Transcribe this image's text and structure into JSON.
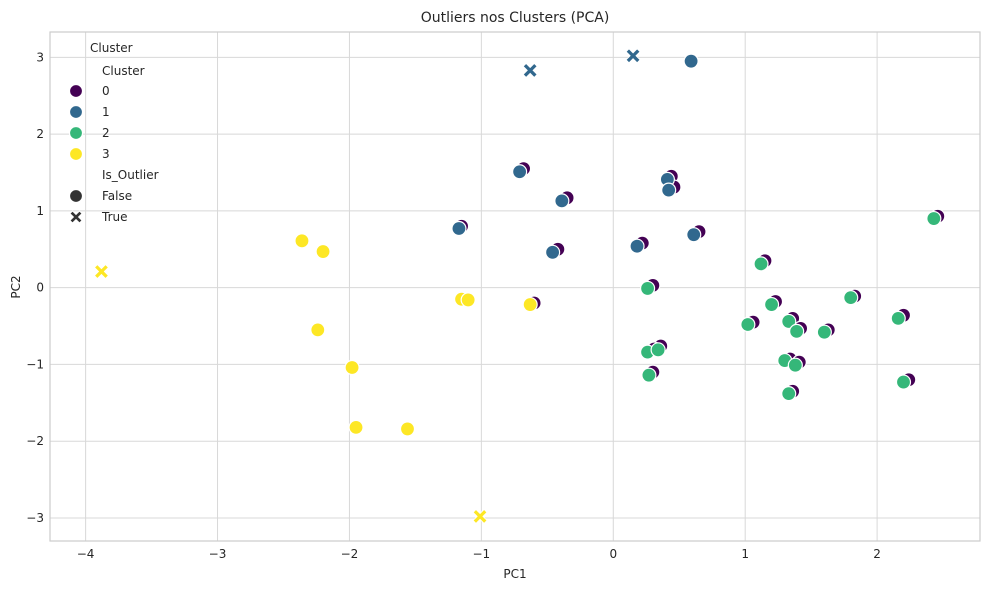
{
  "chart_data": {
    "type": "scatter",
    "title": "Outliers nos Clusters (PCA)",
    "xlabel": "PC1",
    "ylabel": "PC2",
    "xlim": [
      -4.27,
      2.78
    ],
    "ylim": [
      -3.3,
      3.33
    ],
    "xticks": [
      -4,
      -3,
      -2,
      -1,
      0,
      1,
      2
    ],
    "yticks": [
      -3,
      -2,
      -1,
      0,
      1,
      2,
      3
    ],
    "tick_labels_x": [
      "−4",
      "−3",
      "−2",
      "−1",
      "0",
      "1",
      "2"
    ],
    "tick_labels_y": [
      "−3",
      "−2",
      "−1",
      "0",
      "1",
      "2",
      "3"
    ],
    "grid": true,
    "colors": {
      "0": "#440154",
      "1": "#31688e",
      "2": "#35b779",
      "3": "#fde725"
    },
    "legend": {
      "title": "Cluster",
      "placement": "top-left",
      "hue_title": "Cluster",
      "hue_entries": [
        "0",
        "1",
        "2",
        "3"
      ],
      "style_title": "Is_Outlier",
      "style_entries": [
        "False",
        "True"
      ]
    },
    "series": [
      {
        "name": "0",
        "points": [
          [
            -0.68,
            1.55,
            false
          ],
          [
            -0.35,
            1.17,
            false
          ],
          [
            0.44,
            1.45,
            false
          ],
          [
            0.46,
            1.31,
            false
          ],
          [
            -0.42,
            0.5,
            false
          ],
          [
            0.22,
            0.58,
            false
          ],
          [
            0.65,
            0.73,
            false
          ],
          [
            -1.15,
            0.8,
            false
          ],
          [
            1.15,
            0.35,
            false
          ],
          [
            0.3,
            0.03,
            false
          ],
          [
            -0.6,
            -0.2,
            false
          ],
          [
            1.06,
            -0.45,
            false
          ],
          [
            1.23,
            -0.18,
            false
          ],
          [
            1.36,
            -0.4,
            false
          ],
          [
            1.42,
            -0.53,
            false
          ],
          [
            1.63,
            -0.55,
            false
          ],
          [
            1.83,
            -0.11,
            false
          ],
          [
            2.2,
            -0.36,
            false
          ],
          [
            2.46,
            0.93,
            false
          ],
          [
            0.36,
            -0.76,
            false
          ],
          [
            0.31,
            -0.8,
            false
          ],
          [
            1.34,
            -0.93,
            false
          ],
          [
            1.41,
            -0.97,
            false
          ],
          [
            0.3,
            -1.1,
            false
          ],
          [
            1.36,
            -1.35,
            false
          ],
          [
            2.24,
            -1.2,
            false
          ]
        ]
      },
      {
        "name": "1",
        "points": [
          [
            -0.63,
            2.83,
            true
          ],
          [
            0.15,
            3.02,
            true
          ],
          [
            0.59,
            2.95,
            false
          ],
          [
            -0.71,
            1.51,
            false
          ],
          [
            -0.39,
            1.13,
            false
          ],
          [
            0.41,
            1.41,
            false
          ],
          [
            0.42,
            1.27,
            false
          ],
          [
            -0.46,
            0.46,
            false
          ],
          [
            0.18,
            0.54,
            false
          ],
          [
            0.61,
            0.69,
            false
          ],
          [
            -1.17,
            0.77,
            false
          ]
        ]
      },
      {
        "name": "2",
        "points": [
          [
            2.43,
            0.9,
            false
          ],
          [
            1.12,
            0.31,
            false
          ],
          [
            0.26,
            -0.01,
            false
          ],
          [
            1.02,
            -0.48,
            false
          ],
          [
            1.2,
            -0.22,
            false
          ],
          [
            1.33,
            -0.44,
            false
          ],
          [
            1.39,
            -0.57,
            false
          ],
          [
            1.6,
            -0.58,
            false
          ],
          [
            1.8,
            -0.13,
            false
          ],
          [
            2.16,
            -0.4,
            false
          ],
          [
            0.26,
            -0.84,
            false
          ],
          [
            0.34,
            -0.81,
            false
          ],
          [
            1.3,
            -0.95,
            false
          ],
          [
            1.38,
            -1.01,
            false
          ],
          [
            0.27,
            -1.14,
            false
          ],
          [
            1.33,
            -1.38,
            false
          ],
          [
            2.2,
            -1.23,
            false
          ]
        ]
      },
      {
        "name": "3",
        "points": [
          [
            -3.88,
            0.21,
            true
          ],
          [
            -2.36,
            0.61,
            false
          ],
          [
            -2.2,
            0.47,
            false
          ],
          [
            -1.15,
            -0.15,
            false
          ],
          [
            -1.1,
            -0.16,
            false
          ],
          [
            -2.24,
            -0.55,
            false
          ],
          [
            -1.98,
            -1.04,
            false
          ],
          [
            -1.95,
            -1.82,
            false
          ],
          [
            -1.56,
            -1.84,
            false
          ],
          [
            -1.01,
            -2.98,
            true
          ],
          [
            -0.63,
            -0.22,
            false
          ]
        ]
      }
    ]
  }
}
